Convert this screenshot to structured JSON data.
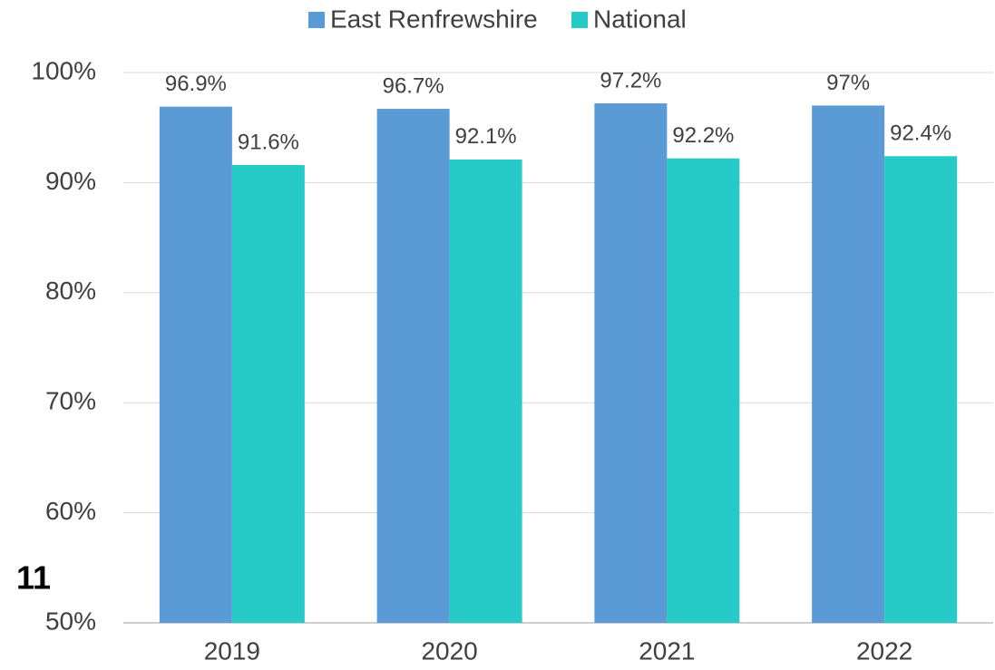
{
  "chart_data": {
    "type": "bar",
    "annotation": "11",
    "categories": [
      "2019",
      "2020",
      "2021",
      "2022"
    ],
    "series": [
      {
        "name": "East Renfrewshire",
        "color": "#5b9bd5",
        "values": [
          96.9,
          96.7,
          97.2,
          97
        ],
        "value_labels": [
          "96.9%",
          "96.7%",
          "97.2%",
          "97%"
        ]
      },
      {
        "name": "National",
        "color": "#26cbc8",
        "values": [
          91.6,
          92.1,
          92.2,
          92.4
        ],
        "value_labels": [
          "91.6%",
          "92.1%",
          "92.2%",
          "92.4%"
        ]
      }
    ],
    "ylim": [
      50,
      100
    ],
    "yticks": [
      {
        "value": 50,
        "label": "50%"
      },
      {
        "value": 60,
        "label": "60%"
      },
      {
        "value": 70,
        "label": "70%"
      },
      {
        "value": 80,
        "label": "80%"
      },
      {
        "value": 90,
        "label": "90%"
      },
      {
        "value": 100,
        "label": "100%"
      }
    ],
    "grid": true,
    "legend": "top"
  }
}
